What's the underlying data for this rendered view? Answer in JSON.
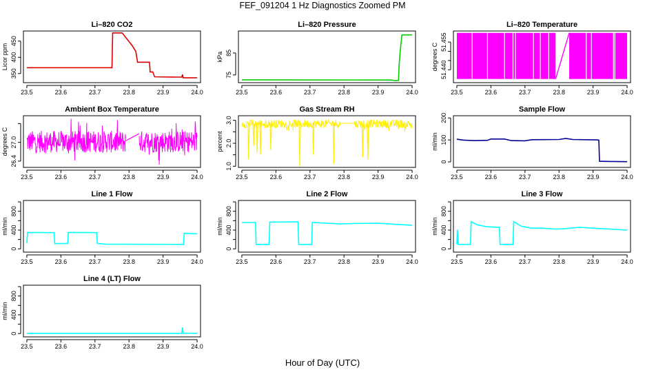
{
  "figure": {
    "title": "FEF_091204  1 Hz Diagnostics Zoomed PM",
    "xlabel": "Hour of Day (UTC)"
  },
  "chart_data": [
    {
      "type": "line",
      "id": "co2",
      "title": "Li–820 CO2",
      "ylabel": "Licor ppm",
      "color": "#dd0000",
      "style": "line",
      "xticks": [
        "23.5",
        "23.6",
        "23.7",
        "23.8",
        "23.9",
        "24.0"
      ],
      "xlim": [
        23.49,
        24.01
      ],
      "ylim": [
        322,
        481
      ],
      "yticks": [
        350,
        400,
        450
      ],
      "series": [
        {
          "name": "CO2",
          "points": [
            [
              23.5,
              368
            ],
            [
              23.75,
              368
            ],
            [
              23.752,
              475
            ],
            [
              23.78,
              475
            ],
            [
              23.81,
              435
            ],
            [
              23.82,
              418
            ],
            [
              23.825,
              385
            ],
            [
              23.86,
              385
            ],
            [
              23.862,
              355
            ],
            [
              23.87,
              355
            ],
            [
              23.875,
              340
            ],
            [
              23.955,
              339
            ],
            [
              23.957,
              347
            ],
            [
              23.959,
              337
            ],
            [
              24.0,
              337
            ]
          ]
        }
      ]
    },
    {
      "type": "line",
      "id": "pressure",
      "title": "Li–820 Pressure",
      "ylabel": "kPa",
      "color": "#00cc00",
      "style": "line",
      "xticks": [
        "23.5",
        "23.6",
        "23.7",
        "23.8",
        "23.9",
        "24.0"
      ],
      "xlim": [
        23.49,
        24.01
      ],
      "ylim": [
        71.5,
        95
      ],
      "yticks": [
        75,
        85
      ],
      "series": [
        {
          "name": "Pressure",
          "points": [
            [
              23.5,
              72.8
            ],
            [
              23.94,
              72.7
            ],
            [
              23.95,
              72.4
            ],
            [
              23.96,
              72.5
            ],
            [
              23.962,
              80
            ],
            [
              23.965,
              86
            ],
            [
              23.968,
              90
            ],
            [
              23.97,
              93.2
            ],
            [
              24.0,
              93.2
            ]
          ]
        }
      ]
    },
    {
      "type": "area",
      "id": "licor-temp",
      "title": "Li–820 Temperature",
      "ylabel": "degrees C",
      "color": "#ff00ff",
      "style": "band",
      "xticks": [
        "23.5",
        "23.6",
        "23.7",
        "23.8",
        "23.9",
        "24.0"
      ],
      "xlim": [
        23.49,
        24.01
      ],
      "ylim": [
        51.433,
        51.461
      ],
      "yticks": [
        51.44,
        51.445,
        51.45,
        51.455
      ],
      "ytick_labels": [
        "51.440",
        "",
        "",
        "51.455"
      ],
      "series": [
        {
          "name": "Temperature",
          "band": [
            51.435,
            51.46
          ],
          "segments": [
            [
              23.5,
              23.79
            ],
            [
              23.83,
              24.0
            ]
          ],
          "connector": [
            [
              23.79,
              51.435
            ],
            [
              23.83,
              51.46
            ]
          ],
          "gaps": [
            23.545,
            23.59,
            23.64,
            23.665,
            23.672,
            23.725,
            23.745,
            23.77,
            23.88,
            23.895,
            23.96,
            23.964
          ]
        }
      ]
    },
    {
      "type": "area",
      "id": "box-temp",
      "title": "Ambient Box Temperature",
      "ylabel": "degrees C",
      "color": "#ff00ff",
      "style": "noise",
      "xticks": [
        "23.5",
        "23.6",
        "23.7",
        "23.8",
        "23.9",
        "24.0"
      ],
      "xlim": [
        23.49,
        24.01
      ],
      "ylim": [
        26.2,
        27.85
      ],
      "yticks": [
        26.4,
        27.0,
        27.6
      ],
      "ytick_labels": [
        "26.4",
        "27.0",
        ""
      ],
      "series": [
        {
          "name": "Temperature",
          "center": 27.02,
          "amplitude": 0.35,
          "outliers": 0.75,
          "segments": [
            [
              23.5,
              23.79
            ],
            [
              23.83,
              24.0
            ]
          ],
          "connector": [
            [
              23.79,
              27.05
            ],
            [
              23.83,
              27.28
            ]
          ]
        }
      ]
    },
    {
      "type": "line",
      "id": "rh",
      "title": "Gas Stream RH",
      "ylabel": "percent",
      "color": "#ffee00",
      "style": "rh",
      "xticks": [
        "23.5",
        "23.6",
        "23.7",
        "23.8",
        "23.9",
        "24.0"
      ],
      "xlim": [
        23.49,
        24.01
      ],
      "ylim": [
        0.95,
        3.2
      ],
      "yticks": [
        1.0,
        1.5,
        2.0,
        2.5,
        3.0
      ],
      "ytick_labels": [
        "1.0",
        "",
        "2.0",
        "",
        "3.0"
      ],
      "series": [
        {
          "name": "RH",
          "base": 2.85,
          "amplitude": 0.3,
          "segments": [
            [
              23.5,
              23.79
            ],
            [
              23.83,
              24.0
            ]
          ],
          "connector": [
            [
              23.79,
              2.87
            ],
            [
              23.83,
              2.87
            ]
          ],
          "spikes": [
            [
              23.52,
              1.3
            ],
            [
              23.535,
              1.9
            ],
            [
              23.545,
              1.6
            ],
            [
              23.555,
              1.5
            ],
            [
              23.585,
              1.7
            ],
            [
              23.67,
              1.0
            ],
            [
              23.71,
              1.5
            ],
            [
              23.77,
              1.1
            ],
            [
              23.855,
              1.4
            ],
            [
              23.87,
              1.3
            ]
          ]
        }
      ]
    },
    {
      "type": "line",
      "id": "sample-flow",
      "title": "Sample Flow",
      "ylabel": "ml/min",
      "color": "#000099",
      "style": "line",
      "xticks": [
        "23.5",
        "23.6",
        "23.7",
        "23.8",
        "23.9",
        "24.0"
      ],
      "xlim": [
        23.49,
        24.01
      ],
      "ylim": [
        -25,
        210
      ],
      "yticks": [
        0,
        100,
        200
      ],
      "series": [
        {
          "name": "Flow",
          "points": [
            [
              23.5,
              103
            ],
            [
              23.52,
              99
            ],
            [
              23.55,
              97
            ],
            [
              23.59,
              98
            ],
            [
              23.6,
              104
            ],
            [
              23.64,
              104
            ],
            [
              23.66,
              97
            ],
            [
              23.7,
              96
            ],
            [
              23.72,
              101
            ],
            [
              23.8,
              102
            ],
            [
              23.82,
              107
            ],
            [
              23.84,
              102
            ],
            [
              23.91,
              100
            ],
            [
              23.917,
              99
            ],
            [
              23.919,
              3
            ],
            [
              23.95,
              2
            ],
            [
              24.0,
              1
            ]
          ]
        }
      ]
    },
    {
      "type": "line",
      "id": "line1",
      "title": "Line 1 Flow",
      "ylabel": "ml/min",
      "color": "#00ffff",
      "style": "line",
      "xticks": [
        "23.5",
        "23.6",
        "23.7",
        "23.8",
        "23.9",
        "24.0"
      ],
      "xlim": [
        23.49,
        24.01
      ],
      "ylim": [
        -70,
        1030
      ],
      "yticks": [
        0,
        200,
        400,
        600,
        800,
        1000
      ],
      "ytick_labels": [
        "0",
        "",
        "400",
        "",
        "800",
        ""
      ],
      "series": [
        {
          "name": "Flow",
          "points": [
            [
              23.5,
              120
            ],
            [
              23.502,
              350
            ],
            [
              23.58,
              345
            ],
            [
              23.582,
              110
            ],
            [
              23.62,
              115
            ],
            [
              23.622,
              350
            ],
            [
              23.705,
              345
            ],
            [
              23.707,
              115
            ],
            [
              23.73,
              100
            ],
            [
              23.96,
              95
            ],
            [
              23.962,
              330
            ],
            [
              24.0,
              320
            ]
          ]
        }
      ]
    },
    {
      "type": "line",
      "id": "line2",
      "title": "Line 2 Flow",
      "ylabel": "ml/min",
      "color": "#00ffff",
      "style": "line",
      "xticks": [
        "23.5",
        "23.6",
        "23.7",
        "23.8",
        "23.9",
        "24.0"
      ],
      "xlim": [
        23.49,
        24.01
      ],
      "ylim": [
        -70,
        1030
      ],
      "yticks": [
        0,
        200,
        400,
        600,
        800,
        1000
      ],
      "ytick_labels": [
        "0",
        "",
        "400",
        "",
        "800",
        ""
      ],
      "series": [
        {
          "name": "Flow",
          "points": [
            [
              23.5,
              560
            ],
            [
              23.54,
              560
            ],
            [
              23.542,
              95
            ],
            [
              23.58,
              95
            ],
            [
              23.582,
              570
            ],
            [
              23.665,
              575
            ],
            [
              23.667,
              95
            ],
            [
              23.705,
              95
            ],
            [
              23.707,
              560
            ],
            [
              23.79,
              530
            ],
            [
              23.83,
              540
            ],
            [
              23.9,
              545
            ],
            [
              24.0,
              500
            ]
          ]
        }
      ]
    },
    {
      "type": "line",
      "id": "line3",
      "title": "Line 3 Flow",
      "ylabel": "ml/min",
      "color": "#00ffff",
      "style": "line",
      "xticks": [
        "23.5",
        "23.6",
        "23.7",
        "23.8",
        "23.9",
        "24.0"
      ],
      "xlim": [
        23.49,
        24.01
      ],
      "ylim": [
        -70,
        1030
      ],
      "yticks": [
        0,
        200,
        400,
        600,
        800,
        1000
      ],
      "ytick_labels": [
        "0",
        "",
        "400",
        "",
        "800",
        ""
      ],
      "series": [
        {
          "name": "Flow",
          "points": [
            [
              23.5,
              100
            ],
            [
              23.502,
              410
            ],
            [
              23.504,
              95
            ],
            [
              23.54,
              95
            ],
            [
              23.542,
              580
            ],
            [
              23.56,
              510
            ],
            [
              23.59,
              470
            ],
            [
              23.625,
              460
            ],
            [
              23.627,
              95
            ],
            [
              23.665,
              95
            ],
            [
              23.667,
              580
            ],
            [
              23.69,
              480
            ],
            [
              23.72,
              440
            ],
            [
              23.75,
              440
            ],
            [
              23.79,
              420
            ],
            [
              23.82,
              430
            ],
            [
              23.86,
              460
            ],
            [
              23.9,
              440
            ],
            [
              24.0,
              400
            ]
          ]
        }
      ]
    },
    {
      "type": "line",
      "id": "line4",
      "title": "Line 4 (LT) Flow",
      "ylabel": "ml/min",
      "color": "#00ffff",
      "style": "line",
      "xticks": [
        "23.5",
        "23.6",
        "23.7",
        "23.8",
        "23.9",
        "24.0"
      ],
      "xlim": [
        23.49,
        24.01
      ],
      "ylim": [
        -70,
        1030
      ],
      "yticks": [
        0,
        200,
        400,
        600,
        800,
        1000
      ],
      "ytick_labels": [
        "0",
        "",
        "400",
        "",
        "800",
        ""
      ],
      "series": [
        {
          "name": "Flow",
          "points": [
            [
              23.5,
              5
            ],
            [
              23.955,
              5
            ],
            [
              23.957,
              130
            ],
            [
              23.959,
              10
            ],
            [
              24.0,
              5
            ]
          ]
        }
      ]
    }
  ]
}
